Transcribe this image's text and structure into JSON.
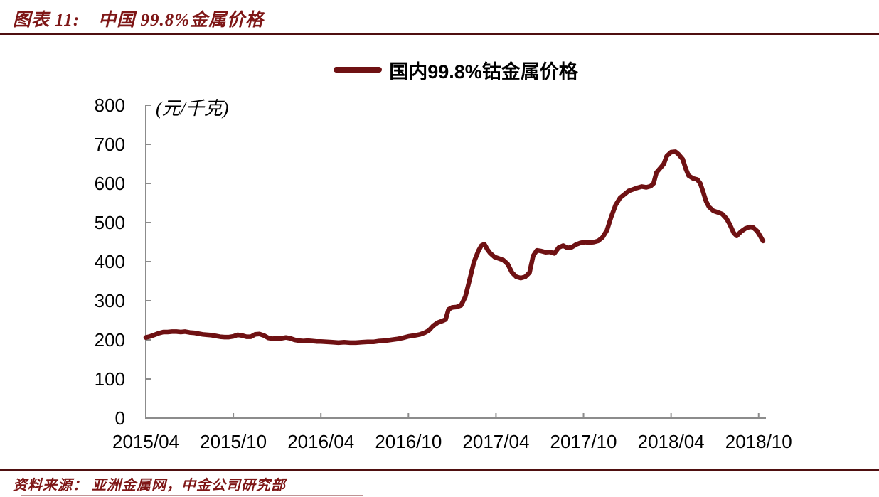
{
  "page": {
    "title_prefix": "图表 11:",
    "title_text": "中国 99.8%金属价格",
    "source_text": "资料来源： 亚洲金属网，中金公司研究部"
  },
  "colors": {
    "maroon_line": "#6F1113",
    "title_text": "#7E1616",
    "rule_dark": "#4F0F10",
    "axis_gray": "#8C8C8C",
    "tick_label": "#000000"
  },
  "chart_data": {
    "type": "line",
    "title": "图表 11: 中国 99.8%金属价格",
    "unit_label": "(元/千克)",
    "legend": [
      "国内99.8%钴金属价格"
    ],
    "legend_position": "top-center",
    "grid": false,
    "xlabel": "",
    "ylabel": "元/千克",
    "y_ticks": [
      0,
      100,
      200,
      300,
      400,
      500,
      600,
      700,
      800
    ],
    "ylim": [
      0,
      800
    ],
    "x_tick_labels": [
      "2015/04",
      "2015/10",
      "2016/04",
      "2016/10",
      "2017/04",
      "2017/10",
      "2018/04",
      "2018/10"
    ],
    "x_tick_interval_months": 6,
    "x_range_months": [
      0,
      42.5
    ],
    "line_color": "#6F1113",
    "series": [
      {
        "name": "国内99.8%钴金属价格",
        "x_unit": "months since 2015/04",
        "points": [
          [
            0,
            206
          ],
          [
            0.3,
            209
          ],
          [
            0.6,
            213
          ],
          [
            0.9,
            217
          ],
          [
            1.2,
            220
          ],
          [
            1.5,
            220
          ],
          [
            1.8,
            221
          ],
          [
            2.1,
            221
          ],
          [
            2.4,
            220
          ],
          [
            2.7,
            221
          ],
          [
            3,
            219
          ],
          [
            3.3,
            218
          ],
          [
            3.6,
            216
          ],
          [
            3.9,
            214
          ],
          [
            4.2,
            213
          ],
          [
            4.5,
            212
          ],
          [
            4.8,
            210
          ],
          [
            5.1,
            208
          ],
          [
            5.4,
            207
          ],
          [
            5.7,
            207
          ],
          [
            6,
            209
          ],
          [
            6.3,
            213
          ],
          [
            6.6,
            211
          ],
          [
            6.9,
            208
          ],
          [
            7.2,
            208
          ],
          [
            7.5,
            214
          ],
          [
            7.8,
            215
          ],
          [
            8.1,
            211
          ],
          [
            8.4,
            205
          ],
          [
            8.7,
            203
          ],
          [
            9,
            204
          ],
          [
            9.3,
            204
          ],
          [
            9.6,
            206
          ],
          [
            9.9,
            204
          ],
          [
            10.2,
            200
          ],
          [
            10.5,
            198
          ],
          [
            10.8,
            197
          ],
          [
            11.1,
            198
          ],
          [
            11.4,
            197
          ],
          [
            11.7,
            196
          ],
          [
            12,
            196
          ],
          [
            12.4,
            195
          ],
          [
            12.8,
            194
          ],
          [
            13.2,
            193
          ],
          [
            13.6,
            194
          ],
          [
            14,
            193
          ],
          [
            14.4,
            193
          ],
          [
            14.8,
            194
          ],
          [
            15.2,
            195
          ],
          [
            15.6,
            195
          ],
          [
            16,
            197
          ],
          [
            16.4,
            198
          ],
          [
            16.8,
            200
          ],
          [
            17.2,
            202
          ],
          [
            17.6,
            205
          ],
          [
            18,
            209
          ],
          [
            18.4,
            211
          ],
          [
            18.8,
            214
          ],
          [
            19.1,
            218
          ],
          [
            19.4,
            224
          ],
          [
            19.7,
            236
          ],
          [
            20,
            244
          ],
          [
            20.3,
            248
          ],
          [
            20.55,
            252
          ],
          [
            20.75,
            278
          ],
          [
            21,
            283
          ],
          [
            21.3,
            284
          ],
          [
            21.6,
            288
          ],
          [
            21.9,
            310
          ],
          [
            22.2,
            355
          ],
          [
            22.5,
            400
          ],
          [
            22.8,
            428
          ],
          [
            23,
            441
          ],
          [
            23.2,
            445
          ],
          [
            23.4,
            432
          ],
          [
            23.6,
            422
          ],
          [
            23.9,
            412
          ],
          [
            24.2,
            408
          ],
          [
            24.5,
            404
          ],
          [
            24.8,
            394
          ],
          [
            25.1,
            372
          ],
          [
            25.4,
            361
          ],
          [
            25.7,
            358
          ],
          [
            26,
            361
          ],
          [
            26.3,
            372
          ],
          [
            26.55,
            415
          ],
          [
            26.8,
            429
          ],
          [
            27.1,
            427
          ],
          [
            27.4,
            424
          ],
          [
            27.7,
            425
          ],
          [
            28,
            421
          ],
          [
            28.3,
            436
          ],
          [
            28.6,
            441
          ],
          [
            28.9,
            435
          ],
          [
            29.2,
            437
          ],
          [
            29.5,
            444
          ],
          [
            29.8,
            448
          ],
          [
            30.1,
            450
          ],
          [
            30.4,
            449
          ],
          [
            30.7,
            450
          ],
          [
            31,
            453
          ],
          [
            31.3,
            462
          ],
          [
            31.6,
            480
          ],
          [
            31.9,
            515
          ],
          [
            32.2,
            545
          ],
          [
            32.5,
            563
          ],
          [
            32.8,
            572
          ],
          [
            33.1,
            581
          ],
          [
            33.4,
            585
          ],
          [
            33.7,
            589
          ],
          [
            34,
            592
          ],
          [
            34.3,
            590
          ],
          [
            34.6,
            593
          ],
          [
            34.8,
            600
          ],
          [
            35,
            628
          ],
          [
            35.3,
            641
          ],
          [
            35.5,
            650
          ],
          [
            35.7,
            670
          ],
          [
            36,
            680
          ],
          [
            36.3,
            681
          ],
          [
            36.5,
            675
          ],
          [
            36.8,
            662
          ],
          [
            37,
            638
          ],
          [
            37.2,
            620
          ],
          [
            37.5,
            613
          ],
          [
            37.8,
            610
          ],
          [
            38,
            600
          ],
          [
            38.2,
            578
          ],
          [
            38.4,
            554
          ],
          [
            38.6,
            540
          ],
          [
            38.9,
            530
          ],
          [
            39.2,
            526
          ],
          [
            39.5,
            522
          ],
          [
            39.8,
            510
          ],
          [
            40,
            497
          ],
          [
            40.3,
            473
          ],
          [
            40.5,
            466
          ],
          [
            40.8,
            477
          ],
          [
            41.1,
            485
          ],
          [
            41.4,
            489
          ],
          [
            41.6,
            488
          ],
          [
            41.9,
            478
          ],
          [
            42.1,
            466
          ],
          [
            42.3,
            453
          ]
        ]
      }
    ]
  }
}
